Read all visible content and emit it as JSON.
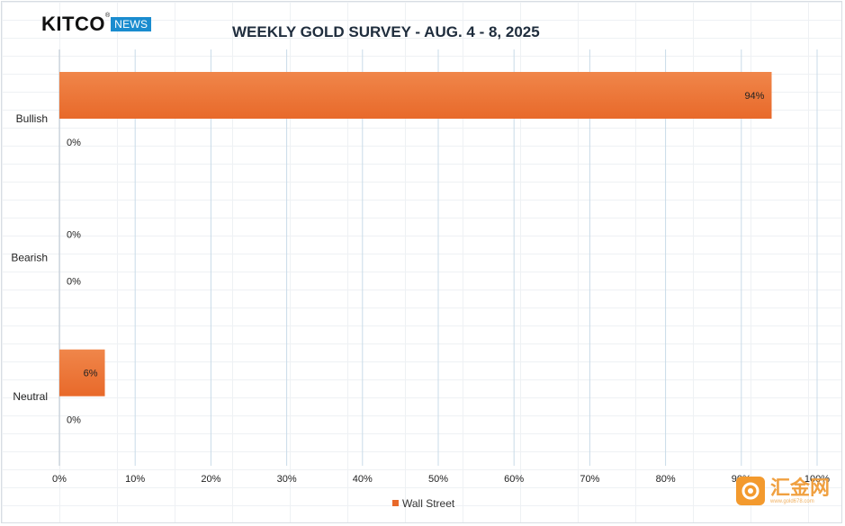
{
  "brand": {
    "wordmark": "KITCO",
    "badge": "NEWS",
    "registered": "®"
  },
  "watermark": {
    "text": "汇金网",
    "sub": "www.gold678.com",
    "icon": "gold678-logo-icon"
  },
  "colors": {
    "bar": "#e8692a",
    "bar_light": "#f0864a",
    "grid": "#c9dbe8",
    "axis_text": "#222222"
  },
  "chart_data": {
    "type": "bar",
    "orientation": "horizontal",
    "title": "WEEKLY GOLD SURVEY - AUG. 4 - 8, 2025",
    "categories": [
      "Bullish",
      "Bearish",
      "Neutral"
    ],
    "series": [
      {
        "name": "Wall Street",
        "values": [
          94,
          0,
          6
        ],
        "labels": [
          "94%",
          "0%",
          "6%"
        ]
      },
      {
        "name": "",
        "values": [
          0,
          0,
          0
        ],
        "labels": [
          "0%",
          "0%",
          "0%"
        ]
      }
    ],
    "xlim": [
      0,
      100
    ],
    "xticks": [
      "0%",
      "10%",
      "20%",
      "30%",
      "40%",
      "50%",
      "60%",
      "70%",
      "80%",
      "90%",
      "100%"
    ],
    "grid": true,
    "legend": {
      "position": "bottom",
      "entries": [
        "Wall Street"
      ]
    }
  }
}
